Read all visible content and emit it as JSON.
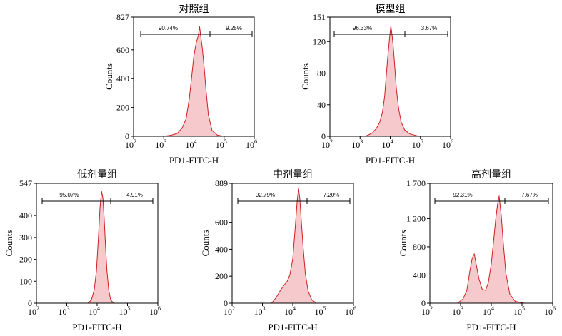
{
  "colors": {
    "line": "#cc1f1f",
    "fill": "#f6c9cc",
    "axis": "#000000"
  },
  "chart_data": [
    {
      "type": "area",
      "title": "对照组",
      "xlabel": "PD1-FITC-H",
      "ylabel": "Counts",
      "x_scale": "log",
      "xlim": [
        100,
        1000000
      ],
      "ylim": [
        0,
        827
      ],
      "y_ticks": [
        "0",
        "200",
        "400",
        "600",
        "827"
      ],
      "x_ticks": [
        "10^2",
        "10^3",
        "10^4",
        "10^5",
        "10^6"
      ],
      "gates": [
        {
          "label": "90.74%"
        },
        {
          "label": "9.25%"
        }
      ],
      "series": [
        {
          "x": [
            1000,
            1800,
            2800,
            4000,
            5500,
            7000,
            8500,
            10000,
            12000,
            14000,
            15500,
            17000,
            19000,
            22000,
            25000,
            30000,
            40000,
            60000,
            100000
          ],
          "y": [
            0,
            8,
            20,
            55,
            120,
            260,
            420,
            560,
            650,
            700,
            760,
            690,
            610,
            470,
            330,
            150,
            40,
            8,
            0
          ]
        }
      ]
    },
    {
      "type": "area",
      "title": "模型组",
      "xlabel": "PD1-FITC-H",
      "ylabel": "Counts",
      "x_scale": "log",
      "xlim": [
        100,
        1000000
      ],
      "ylim": [
        0,
        151
      ],
      "y_ticks": [
        "0",
        "40",
        "80",
        "120",
        "151"
      ],
      "x_ticks": [
        "10^2",
        "10^3",
        "10^4",
        "10^5",
        "10^6"
      ],
      "gates": [
        {
          "label": "96.33%"
        },
        {
          "label": "3.67%"
        }
      ],
      "series": [
        {
          "x": [
            1500,
            2500,
            3500,
            4500,
            5500,
            6500,
            7500,
            8500,
            9500,
            10500,
            11500,
            12500,
            14000,
            16000,
            19000,
            23000,
            30000,
            45000,
            90000
          ],
          "y": [
            0,
            4,
            10,
            18,
            30,
            50,
            80,
            105,
            125,
            140,
            128,
            115,
            90,
            60,
            35,
            18,
            8,
            3,
            0
          ]
        }
      ]
    },
    {
      "type": "area",
      "title": "低剂量组",
      "xlabel": "PD1-FITC-H",
      "ylabel": "Counts",
      "x_scale": "log",
      "xlim": [
        100,
        1000000
      ],
      "ylim": [
        0,
        547
      ],
      "y_ticks": [
        "0",
        "100",
        "200",
        "300",
        "400",
        "547"
      ],
      "x_ticks": [
        "10^2",
        "10^3",
        "10^4",
        "10^5",
        "10^6"
      ],
      "gates": [
        {
          "label": "95.07%"
        },
        {
          "label": "4.91%"
        }
      ],
      "series": [
        {
          "x": [
            5000,
            6500,
            8000,
            9500,
            11000,
            12500,
            14000,
            15500,
            17000,
            19000,
            21000,
            24000,
            28000,
            35000
          ],
          "y": [
            0,
            15,
            60,
            150,
            300,
            440,
            510,
            480,
            390,
            260,
            150,
            60,
            15,
            0
          ]
        }
      ]
    },
    {
      "type": "area",
      "title": "中剂量组",
      "xlabel": "PD1-FITC-H",
      "ylabel": "Counts",
      "x_scale": "log",
      "xlim": [
        100,
        1000000
      ],
      "ylim": [
        0,
        889
      ],
      "y_ticks": [
        "0",
        "200",
        "400",
        "600",
        "889"
      ],
      "x_ticks": [
        "10^2",
        "10^3",
        "10^4",
        "10^5",
        "10^6"
      ],
      "gates": [
        {
          "label": "92.79%"
        },
        {
          "label": "7.20%"
        }
      ],
      "series": [
        {
          "x": [
            2000,
            2800,
            3800,
            5000,
            6500,
            8000,
            10000,
            12000,
            14000,
            15500,
            17000,
            19000,
            22000,
            26000,
            32000,
            42000,
            60000
          ],
          "y": [
            0,
            40,
            90,
            130,
            160,
            210,
            330,
            560,
            760,
            850,
            780,
            620,
            410,
            220,
            90,
            25,
            0
          ]
        }
      ]
    },
    {
      "type": "area",
      "title": "高剂量组",
      "xlabel": "PD1-FITC-H",
      "ylabel": "Counts",
      "x_scale": "log",
      "xlim": [
        100,
        1000000
      ],
      "ylim": [
        0,
        1700
      ],
      "y_ticks": [
        "0",
        "400",
        "800",
        "1 200",
        "1 700"
      ],
      "x_ticks": [
        "10^2",
        "10^3",
        "10^4",
        "10^5",
        "10^6"
      ],
      "gates": [
        {
          "label": "92.31%"
        },
        {
          "label": "7.67%"
        }
      ],
      "series": [
        {
          "x": [
            800,
            1200,
            1600,
            2000,
            2400,
            2800,
            3200,
            4000,
            5000,
            6500,
            8000,
            10000,
            12000,
            14000,
            16000,
            18000,
            21000,
            25000,
            30000,
            40000,
            60000,
            120000
          ],
          "y": [
            0,
            60,
            180,
            450,
            640,
            700,
            560,
            340,
            200,
            180,
            290,
            560,
            900,
            1200,
            1400,
            1520,
            1250,
            820,
            420,
            130,
            25,
            0
          ]
        }
      ]
    }
  ]
}
